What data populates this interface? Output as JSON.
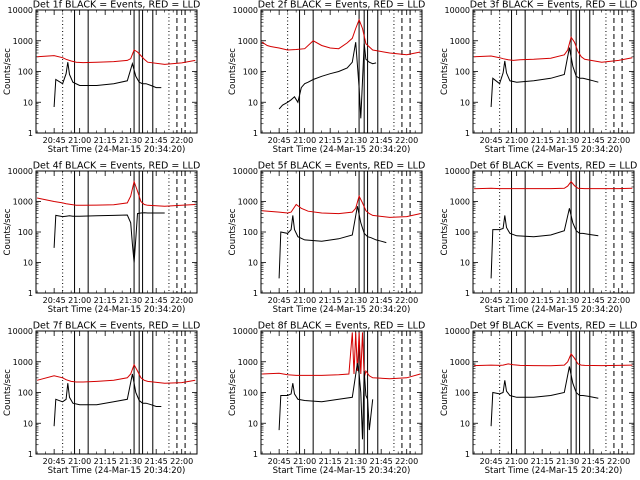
{
  "chart_data": {
    "type": "line",
    "layout": "3x3 grid of log-scale time series panels",
    "ylabel": "Counts/sec",
    "xlabel": "Start Time (24-Mar-15 20:34:20)",
    "yscale": "log",
    "ylim": [
      1,
      10000
    ],
    "y_ticks": [
      "1",
      "10",
      "100",
      "1000",
      "10000"
    ],
    "x_tick_labels": [
      "20:45",
      "21:00",
      "21:15",
      "21:30",
      "21:45",
      "22:00"
    ],
    "x_tick_minutes": [
      45,
      60,
      75,
      90,
      105,
      120
    ],
    "xlim_minutes": [
      34.33,
      129
    ],
    "legend": "BLACK = Events, RED = LLD",
    "colors": {
      "events": "#000000",
      "lld": "#d40000"
    },
    "shared_lines": {
      "dotted_minutes": [
        50,
        112.5
      ],
      "solid_minutes": [
        57,
        65,
        92,
        95,
        97,
        103
      ],
      "dashed_minutes": [
        117.2,
        122
      ]
    },
    "panels": [
      {
        "title": "Det 1f BLACK = Events, RED = LLD",
        "lld": {
          "x": [
            35,
            45,
            50,
            52,
            55,
            58,
            62,
            70,
            80,
            88,
            90,
            92,
            94,
            96,
            98,
            100,
            110,
            120,
            128
          ],
          "y": [
            300,
            330,
            280,
            250,
            220,
            200,
            195,
            200,
            210,
            230,
            260,
            500,
            430,
            330,
            250,
            200,
            170,
            190,
            230
          ]
        },
        "events": {
          "x": [
            45,
            46,
            50,
            52,
            53,
            54,
            56,
            60,
            70,
            80,
            88,
            91,
            93,
            95,
            97,
            99,
            102,
            105,
            108
          ],
          "y": [
            7,
            55,
            40,
            85,
            200,
            80,
            45,
            35,
            35,
            40,
            50,
            180,
            70,
            45,
            40,
            40,
            35,
            30,
            30
          ]
        }
      },
      {
        "title": "Det 2f BLACK = Events, RED = LLD",
        "lld": {
          "x": [
            35,
            38,
            40,
            42,
            45,
            50,
            55,
            60,
            65,
            70,
            75,
            80,
            85,
            88,
            90,
            92,
            94,
            96,
            100,
            110,
            120,
            128
          ],
          "y": [
            900,
            700,
            650,
            620,
            580,
            500,
            520,
            550,
            1000,
            700,
            580,
            550,
            850,
            1200,
            2500,
            4800,
            2500,
            800,
            500,
            400,
            350,
            430
          ]
        },
        "events": {
          "x": [
            45,
            47,
            50,
            52,
            54,
            56,
            58,
            60,
            62,
            65,
            70,
            75,
            80,
            85,
            88,
            90,
            92,
            93,
            94,
            95,
            96,
            98,
            100,
            102
          ],
          "y": [
            6,
            8,
            10,
            12,
            15,
            10,
            30,
            40,
            45,
            55,
            70,
            85,
            100,
            130,
            200,
            900,
            30,
            3,
            50,
            800,
            250,
            200,
            180,
            190
          ]
        }
      },
      {
        "title": "Det 3f BLACK = Events, RED = LLD",
        "lld": {
          "x": [
            35,
            45,
            50,
            52,
            55,
            58,
            62,
            70,
            80,
            88,
            90,
            92,
            94,
            96,
            98,
            100,
            110,
            120,
            128
          ],
          "y": [
            300,
            320,
            280,
            260,
            240,
            230,
            240,
            250,
            270,
            350,
            500,
            1300,
            900,
            450,
            300,
            250,
            200,
            230,
            280
          ]
        },
        "events": {
          "x": [
            45,
            46,
            50,
            52,
            53,
            54,
            56,
            60,
            70,
            80,
            88,
            91,
            93,
            95,
            97,
            99,
            102,
            105,
            108
          ],
          "y": [
            7,
            60,
            40,
            90,
            220,
            90,
            50,
            45,
            50,
            60,
            80,
            600,
            150,
            70,
            60,
            60,
            55,
            50,
            45
          ]
        }
      },
      {
        "title": "Det 4f BLACK = Events, RED = LLD",
        "lld": {
          "x": [
            35,
            45,
            50,
            52,
            55,
            58,
            62,
            70,
            80,
            88,
            90,
            92,
            94,
            96,
            98,
            100,
            110,
            120,
            128
          ],
          "y": [
            1300,
            1000,
            900,
            850,
            800,
            750,
            750,
            760,
            780,
            900,
            1500,
            4500,
            2200,
            1000,
            800,
            750,
            700,
            750,
            800
          ]
        },
        "events": {
          "x": [
            45,
            46,
            50,
            52,
            54,
            56,
            60,
            70,
            80,
            88,
            90,
            91,
            92,
            93,
            94,
            96,
            98,
            100,
            110
          ],
          "y": [
            30,
            350,
            320,
            330,
            340,
            330,
            330,
            340,
            350,
            360,
            200,
            40,
            10,
            60,
            400,
            420,
            430,
            420,
            420
          ]
        }
      },
      {
        "title": "Det 5f BLACK = Events, RED = LLD",
        "lld": {
          "x": [
            35,
            45,
            50,
            52,
            55,
            58,
            62,
            70,
            80,
            88,
            90,
            92,
            94,
            96,
            98,
            100,
            110,
            120,
            128
          ],
          "y": [
            500,
            450,
            420,
            450,
            800,
            600,
            480,
            420,
            400,
            450,
            600,
            1500,
            900,
            500,
            400,
            350,
            300,
            320,
            400
          ]
        },
        "events": {
          "x": [
            45,
            46,
            50,
            52,
            53,
            54,
            56,
            60,
            70,
            80,
            88,
            91,
            93,
            95,
            97,
            99,
            102,
            105,
            108
          ],
          "y": [
            3,
            100,
            90,
            120,
            350,
            120,
            70,
            55,
            50,
            60,
            80,
            700,
            200,
            90,
            70,
            65,
            55,
            50,
            45
          ]
        }
      },
      {
        "title": "Det 6f BLACK = Events, RED = LLD",
        "lld": {
          "x": [
            35,
            45,
            50,
            60,
            70,
            80,
            88,
            90,
            92,
            94,
            96,
            100,
            110,
            120,
            128
          ],
          "y": [
            2600,
            2700,
            2650,
            2650,
            2650,
            2650,
            2700,
            3200,
            4500,
            3300,
            2700,
            2650,
            2650,
            2650,
            2700
          ]
        },
        "events": {
          "x": [
            45,
            46,
            50,
            52,
            53,
            54,
            56,
            60,
            70,
            80,
            88,
            91,
            93,
            95,
            97,
            99,
            102,
            105,
            108
          ],
          "y": [
            3,
            120,
            120,
            130,
            350,
            140,
            90,
            75,
            70,
            80,
            110,
            600,
            200,
            110,
            90,
            90,
            85,
            80,
            75
          ]
        }
      },
      {
        "title": "Det 7f BLACK = Events, RED = LLD",
        "lld": {
          "x": [
            35,
            45,
            50,
            52,
            55,
            58,
            62,
            70,
            80,
            88,
            90,
            92,
            94,
            96,
            98,
            100,
            110,
            120,
            128
          ],
          "y": [
            250,
            350,
            300,
            260,
            230,
            220,
            220,
            230,
            250,
            300,
            400,
            800,
            500,
            300,
            250,
            230,
            200,
            210,
            250
          ]
        },
        "events": {
          "x": [
            45,
            46,
            50,
            52,
            53,
            54,
            56,
            60,
            70,
            80,
            88,
            91,
            93,
            95,
            97,
            99,
            102,
            105,
            108
          ],
          "y": [
            8,
            60,
            50,
            60,
            200,
            70,
            45,
            40,
            40,
            50,
            60,
            400,
            100,
            55,
            45,
            45,
            40,
            35,
            35
          ]
        }
      },
      {
        "title": "Det 8f BLACK = Events, RED = LLD",
        "lld": {
          "x": [
            35,
            45,
            50,
            52,
            55,
            58,
            62,
            70,
            80,
            86,
            88,
            89,
            90,
            91,
            92,
            93,
            94,
            95,
            96,
            98,
            100,
            110,
            120,
            128
          ],
          "y": [
            400,
            420,
            380,
            370,
            360,
            360,
            360,
            360,
            380,
            400,
            9000,
            400,
            9000,
            500,
            9000,
            400,
            9000,
            300,
            500,
            350,
            300,
            280,
            300,
            400
          ]
        },
        "events": {
          "x": [
            45,
            46,
            50,
            52,
            53,
            54,
            56,
            60,
            70,
            80,
            88,
            91,
            92,
            93,
            94,
            95,
            96,
            97,
            98,
            100
          ],
          "y": [
            6,
            80,
            80,
            90,
            200,
            90,
            60,
            55,
            50,
            60,
            70,
            900,
            400,
            100,
            3,
            500,
            80,
            60,
            6,
            60
          ]
        }
      },
      {
        "title": "Det 9f BLACK = Events, RED = LLD",
        "lld": {
          "x": [
            35,
            45,
            50,
            52,
            55,
            58,
            62,
            70,
            80,
            88,
            90,
            92,
            94,
            96,
            98,
            100,
            110,
            120,
            128
          ],
          "y": [
            750,
            780,
            760,
            780,
            850,
            800,
            760,
            750,
            740,
            780,
            1000,
            1800,
            1300,
            850,
            780,
            760,
            750,
            760,
            780
          ]
        },
        "events": {
          "x": [
            45,
            46,
            50,
            52,
            53,
            54,
            56,
            60,
            70,
            80,
            88,
            91,
            93,
            95,
            97,
            99,
            102,
            105,
            108
          ],
          "y": [
            8,
            100,
            90,
            100,
            250,
            110,
            80,
            70,
            70,
            80,
            100,
            700,
            200,
            100,
            80,
            80,
            75,
            70,
            65
          ]
        }
      }
    ]
  }
}
